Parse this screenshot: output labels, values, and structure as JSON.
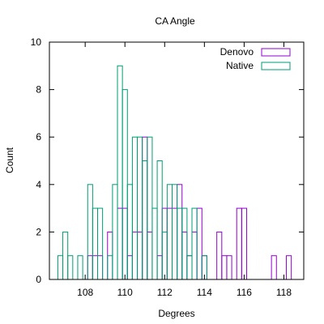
{
  "chart_data": {
    "type": "bar",
    "title": "CA Angle",
    "xlabel": "Degrees",
    "ylabel": "Count",
    "xlim": [
      106.2,
      119.0
    ],
    "ylim": [
      0,
      10
    ],
    "bin_width": 0.25,
    "x_ticks": [
      108,
      110,
      112,
      114,
      116,
      118
    ],
    "y_ticks": [
      0,
      2,
      4,
      6,
      8,
      10
    ],
    "grid": false,
    "legend_position": "top-right",
    "series": [
      {
        "name": "Denovo",
        "color": "#9400d3",
        "bins": [
          {
            "x": 108.25,
            "y": 1
          },
          {
            "x": 108.5,
            "y": 1
          },
          {
            "x": 108.75,
            "y": 1
          },
          {
            "x": 109.25,
            "y": 2
          },
          {
            "x": 109.75,
            "y": 3
          },
          {
            "x": 110.0,
            "y": 3
          },
          {
            "x": 110.25,
            "y": 1
          },
          {
            "x": 110.5,
            "y": 2
          },
          {
            "x": 110.75,
            "y": 2
          },
          {
            "x": 111.0,
            "y": 6
          },
          {
            "x": 111.25,
            "y": 2
          },
          {
            "x": 111.75,
            "y": 1
          },
          {
            "x": 112.0,
            "y": 3
          },
          {
            "x": 112.25,
            "y": 3
          },
          {
            "x": 112.5,
            "y": 3
          },
          {
            "x": 112.75,
            "y": 4
          },
          {
            "x": 113.0,
            "y": 2
          },
          {
            "x": 113.25,
            "y": 1
          },
          {
            "x": 113.5,
            "y": 2
          },
          {
            "x": 113.75,
            "y": 3
          },
          {
            "x": 114.0,
            "y": 1
          },
          {
            "x": 114.75,
            "y": 2
          },
          {
            "x": 115.0,
            "y": 1
          },
          {
            "x": 115.25,
            "y": 1
          },
          {
            "x": 115.75,
            "y": 3
          },
          {
            "x": 116.0,
            "y": 3
          },
          {
            "x": 117.5,
            "y": 1
          },
          {
            "x": 118.25,
            "y": 1
          }
        ]
      },
      {
        "name": "Native",
        "color": "#009e73",
        "bins": [
          {
            "x": 106.75,
            "y": 1
          },
          {
            "x": 107.0,
            "y": 2
          },
          {
            "x": 107.25,
            "y": 1
          },
          {
            "x": 107.75,
            "y": 1
          },
          {
            "x": 108.25,
            "y": 4
          },
          {
            "x": 108.5,
            "y": 3
          },
          {
            "x": 108.75,
            "y": 3
          },
          {
            "x": 109.25,
            "y": 1
          },
          {
            "x": 109.5,
            "y": 4
          },
          {
            "x": 109.75,
            "y": 9
          },
          {
            "x": 110.0,
            "y": 8
          },
          {
            "x": 110.25,
            "y": 4
          },
          {
            "x": 110.5,
            "y": 6
          },
          {
            "x": 110.75,
            "y": 6
          },
          {
            "x": 111.0,
            "y": 5
          },
          {
            "x": 111.25,
            "y": 6
          },
          {
            "x": 111.5,
            "y": 3
          },
          {
            "x": 111.75,
            "y": 5
          },
          {
            "x": 112.0,
            "y": 2
          },
          {
            "x": 112.25,
            "y": 4
          },
          {
            "x": 112.5,
            "y": 4
          },
          {
            "x": 112.75,
            "y": 3
          },
          {
            "x": 113.0,
            "y": 3
          },
          {
            "x": 113.25,
            "y": 1
          },
          {
            "x": 113.5,
            "y": 3
          },
          {
            "x": 114.0,
            "y": 1
          }
        ]
      }
    ]
  }
}
